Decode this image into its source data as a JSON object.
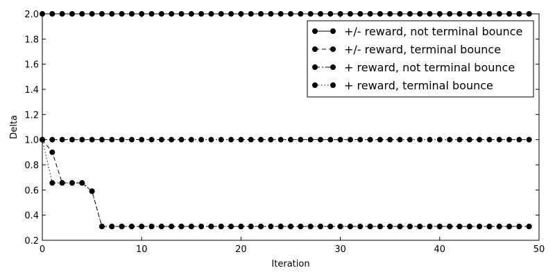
{
  "chart_data": {
    "type": "line",
    "title": "",
    "xlabel": "Iteration",
    "ylabel": "Delta",
    "xlim": [
      0,
      50
    ],
    "ylim": [
      0.2,
      2.0
    ],
    "xticks": [
      "0",
      "10",
      "20",
      "30",
      "40",
      "50"
    ],
    "yticks": [
      "0.2",
      "0.4",
      "0.6",
      "0.8",
      "1.0",
      "1.2",
      "1.4",
      "1.6",
      "1.8",
      "2.0"
    ],
    "grid": false,
    "legend_position": "top-right",
    "x": [
      0,
      1,
      2,
      3,
      4,
      5,
      6,
      7,
      8,
      9,
      10,
      11,
      12,
      13,
      14,
      15,
      16,
      17,
      18,
      19,
      20,
      21,
      22,
      23,
      24,
      25,
      26,
      27,
      28,
      29,
      30,
      31,
      32,
      33,
      34,
      35,
      36,
      37,
      38,
      39,
      40,
      41,
      42,
      43,
      44,
      45,
      46,
      47,
      48,
      49
    ],
    "series": [
      {
        "name": "+/- reward, not terminal bounce",
        "line_style": "solid",
        "color": "#000000",
        "values": [
          2.0,
          2.0,
          2.0,
          2.0,
          2.0,
          2.0,
          2.0,
          2.0,
          2.0,
          2.0,
          2.0,
          2.0,
          2.0,
          2.0,
          2.0,
          2.0,
          2.0,
          2.0,
          2.0,
          2.0,
          2.0,
          2.0,
          2.0,
          2.0,
          2.0,
          2.0,
          2.0,
          2.0,
          2.0,
          2.0,
          2.0,
          2.0,
          2.0,
          2.0,
          2.0,
          2.0,
          2.0,
          2.0,
          2.0,
          2.0,
          2.0,
          2.0,
          2.0,
          2.0,
          2.0,
          2.0,
          2.0,
          2.0,
          2.0,
          2.0
        ]
      },
      {
        "name": "+/- reward, terminal bounce",
        "line_style": "dashed",
        "color": "#000000",
        "values": [
          1.0,
          0.9,
          0.656,
          0.656,
          0.656,
          0.59,
          0.31,
          0.31,
          0.31,
          0.31,
          0.31,
          0.31,
          0.31,
          0.31,
          0.31,
          0.31,
          0.31,
          0.31,
          0.31,
          0.31,
          0.31,
          0.31,
          0.31,
          0.31,
          0.31,
          0.31,
          0.31,
          0.31,
          0.31,
          0.31,
          0.31,
          0.31,
          0.31,
          0.31,
          0.31,
          0.31,
          0.31,
          0.31,
          0.31,
          0.31,
          0.31,
          0.31,
          0.31,
          0.31,
          0.31,
          0.31,
          0.31,
          0.31,
          0.31,
          0.31
        ]
      },
      {
        "name": "+ reward, not terminal bounce",
        "line_style": "dashdot",
        "color": "#000000",
        "values": [
          1.0,
          1.0,
          1.0,
          1.0,
          1.0,
          1.0,
          1.0,
          1.0,
          1.0,
          1.0,
          1.0,
          1.0,
          1.0,
          1.0,
          1.0,
          1.0,
          1.0,
          1.0,
          1.0,
          1.0,
          1.0,
          1.0,
          1.0,
          1.0,
          1.0,
          1.0,
          1.0,
          1.0,
          1.0,
          1.0,
          1.0,
          1.0,
          1.0,
          1.0,
          1.0,
          1.0,
          1.0,
          1.0,
          1.0,
          1.0,
          1.0,
          1.0,
          1.0,
          1.0,
          1.0,
          1.0,
          1.0,
          1.0,
          1.0,
          1.0
        ]
      },
      {
        "name": "+ reward, terminal bounce",
        "line_style": "dotted",
        "color": "#000000",
        "values": [
          1.0,
          0.656,
          0.656,
          0.656,
          0.656,
          0.59,
          0.31,
          0.31,
          0.31,
          0.31,
          0.31,
          0.31,
          0.31,
          0.31,
          0.31,
          0.31,
          0.31,
          0.31,
          0.31,
          0.31,
          0.31,
          0.31,
          0.31,
          0.31,
          0.31,
          0.31,
          0.31,
          0.31,
          0.31,
          0.31,
          0.31,
          0.31,
          0.31,
          0.31,
          0.31,
          0.31,
          0.31,
          0.31,
          0.31,
          0.31,
          0.31,
          0.31,
          0.31,
          0.31,
          0.31,
          0.31,
          0.31,
          0.31,
          0.31,
          0.31
        ]
      }
    ]
  }
}
